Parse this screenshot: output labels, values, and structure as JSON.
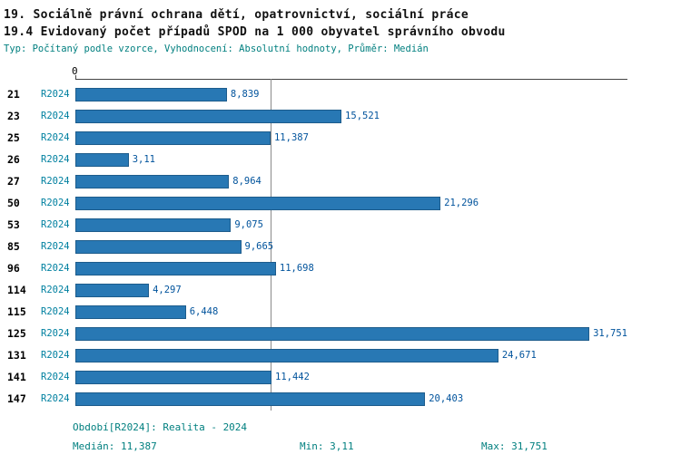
{
  "title1": "19. Sociálně právní ochrana dětí, opatrovnictví, sociální práce",
  "title2": "19.4 Evidovaný počet případů SPOD na 1 000 obyvatel správního obvodu",
  "subtitle": "Typ: Počítaný podle vzorce, Vyhodnocení: Absolutní hodnoty, Průměr: Medián",
  "axis": {
    "zero_label": "0"
  },
  "series_label": "R2024",
  "footer": {
    "period": "Období[R2024]: Realita - 2024",
    "median": "Medián: 11,387",
    "min": "Min: 3,11",
    "max": "Max: 31,751"
  },
  "colors": {
    "bar_fill": "#2878b4",
    "bar_border": "#1d5c8c",
    "teal_text": "#007f7f",
    "value_text": "#00539c"
  },
  "chart_data": {
    "type": "bar",
    "orientation": "horizontal",
    "title": "19.4 Evidovaný počet případů SPOD na 1 000 obyvatel správního obvodu",
    "categories": [
      "21",
      "23",
      "25",
      "26",
      "27",
      "50",
      "53",
      "85",
      "96",
      "114",
      "115",
      "125",
      "131",
      "141",
      "147"
    ],
    "series": [
      {
        "name": "R2024",
        "values": [
          8.839,
          15.521,
          11.387,
          3.11,
          8.964,
          21.296,
          9.075,
          9.665,
          11.698,
          4.297,
          6.448,
          31.751,
          24.671,
          11.442,
          20.403
        ]
      }
    ],
    "value_labels": [
      "8,839",
      "15,521",
      "11,387",
      "3,11",
      "8,964",
      "21,296",
      "9,075",
      "9,665",
      "11,698",
      "4,297",
      "6,448",
      "31,751",
      "24,671",
      "11,442",
      "20,403"
    ],
    "xlim": [
      0,
      32.2
    ],
    "grid": false,
    "legend": "none",
    "median": 11.387,
    "min": 3.11,
    "max": 31.751
  }
}
